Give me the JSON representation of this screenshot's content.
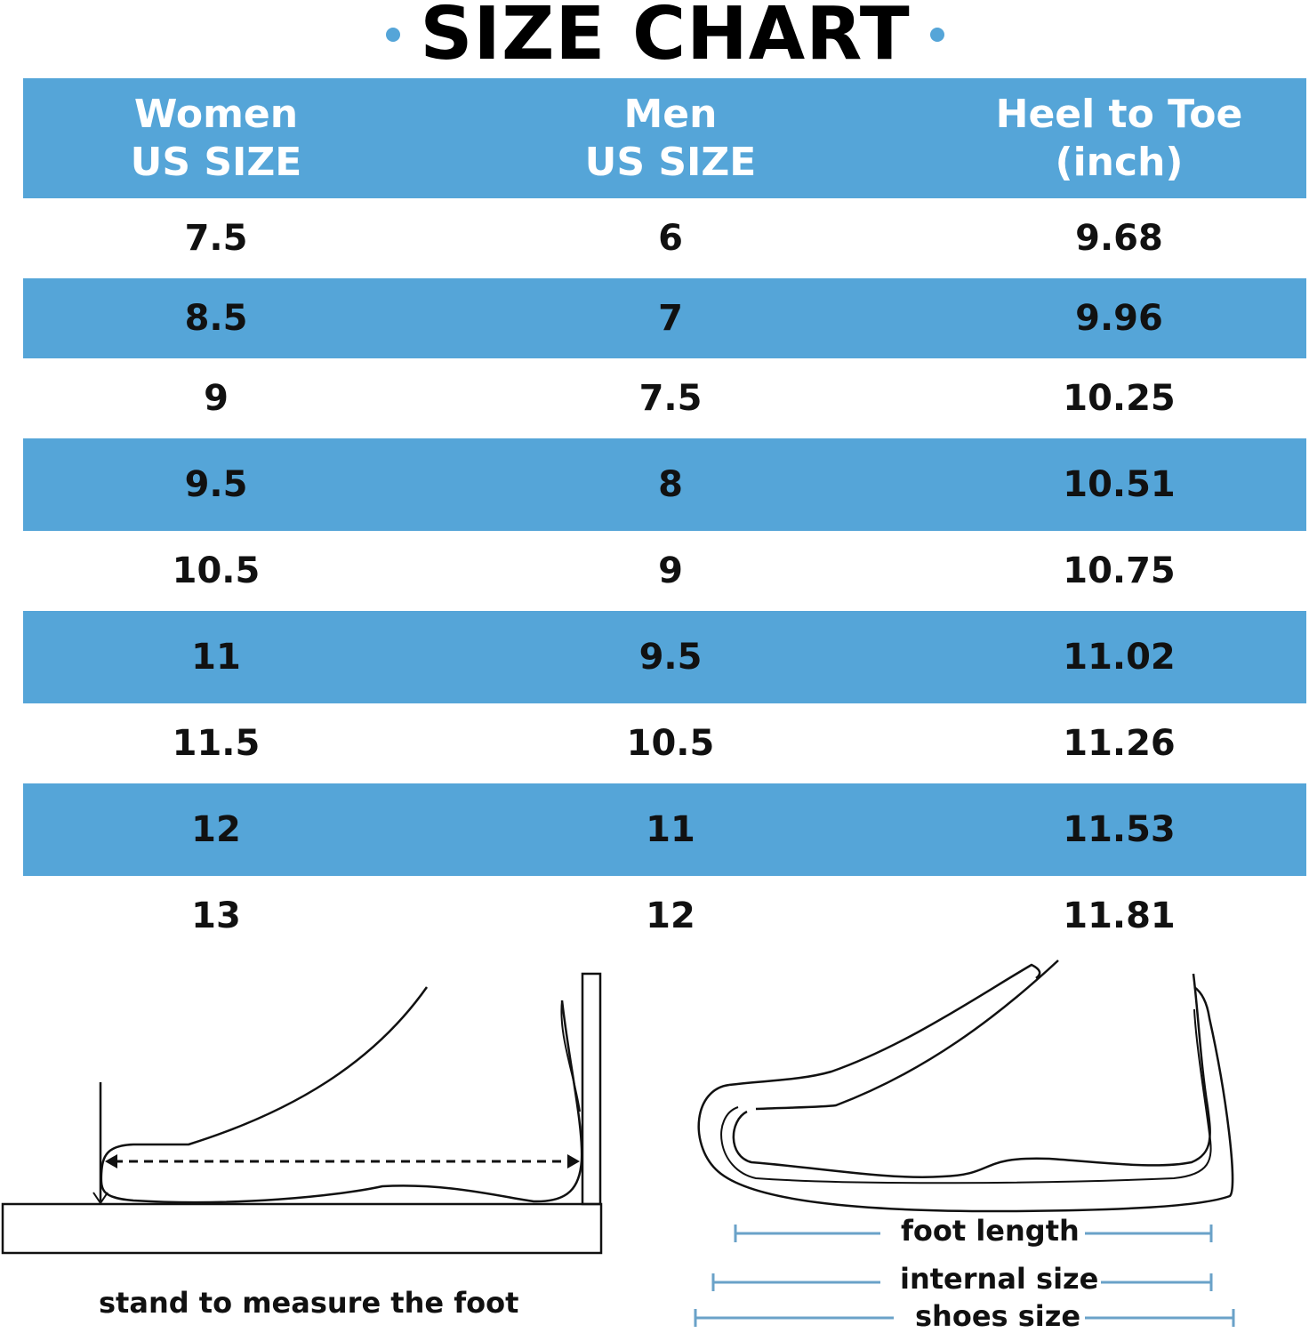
{
  "title": "SIZE CHART",
  "colors": {
    "accent": "#55a5d8",
    "text": "#111111",
    "background": "#ffffff",
    "measure_line": "#6aa2c8"
  },
  "table": {
    "headers": [
      [
        "Women",
        "US SIZE"
      ],
      [
        "Men",
        "US SIZE"
      ],
      [
        "Heel to Toe",
        "(inch)"
      ]
    ],
    "rows": [
      [
        "7.5",
        "6",
        "9.68"
      ],
      [
        "8.5",
        "7",
        "9.96"
      ],
      [
        "9",
        "7.5",
        "10.25"
      ],
      [
        "9.5",
        "8",
        "10.51"
      ],
      [
        "10.5",
        "9",
        "10.75"
      ],
      [
        "11",
        "9.5",
        "11.02"
      ],
      [
        "11.5",
        "10.5",
        "11.26"
      ],
      [
        "12",
        "11",
        "11.53"
      ],
      [
        "13",
        "12",
        "11.81"
      ]
    ]
  },
  "left_figure": {
    "caption": "stand to measure the foot"
  },
  "right_figure": {
    "labels": {
      "foot_length": "foot length",
      "internal_size": "internal size",
      "shoes_size": "shoes size"
    }
  }
}
